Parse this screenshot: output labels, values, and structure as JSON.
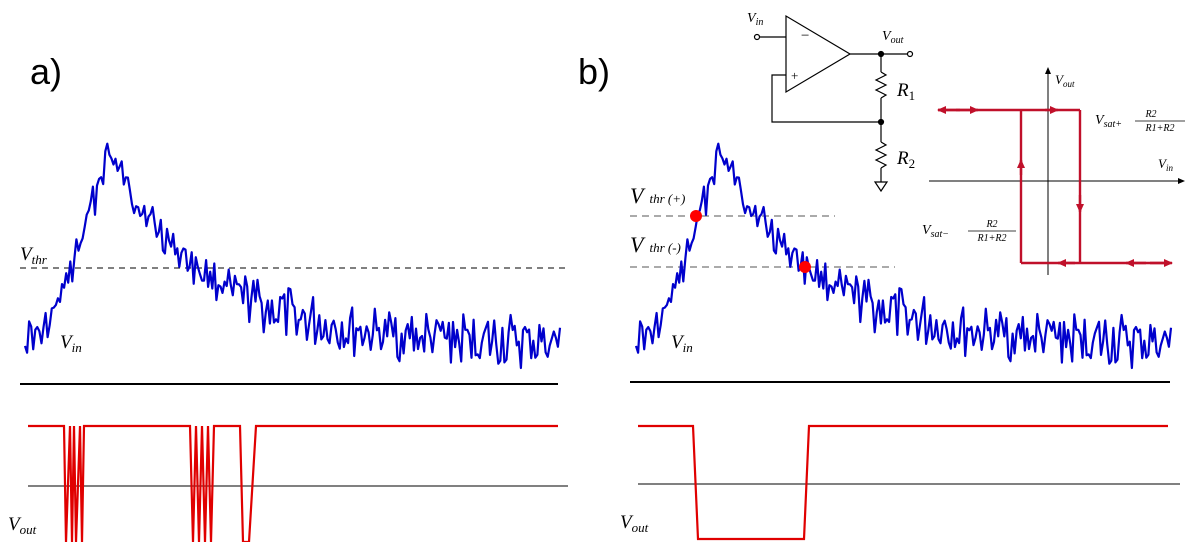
{
  "panel_a": {
    "label": "a)",
    "vthr_label": "V",
    "vthr_sub": "thr",
    "vin_label": "V",
    "vin_sub": "in",
    "vout_label": "V",
    "vout_sub": "out"
  },
  "panel_b": {
    "label": "b)",
    "vthr_plus_label": "V",
    "vthr_plus_sub": "thr (+)",
    "vthr_minus_label": "V",
    "vthr_minus_sub": "thr (-)",
    "vin_label": "V",
    "vin_sub": "in",
    "vout_label": "V",
    "vout_sub": "out"
  },
  "circuit": {
    "vin_label": "V",
    "vin_sub": "in",
    "vout_label": "V",
    "vout_sub": "out",
    "minus_sign": "−",
    "plus_sign": "+",
    "r1_label": "R",
    "r1_sub": "1",
    "r2_label": "R",
    "r2_sub": "2"
  },
  "hysteresis": {
    "vout_axis_label": "V",
    "vout_axis_sub": "out",
    "vin_axis_label": "V",
    "vin_axis_sub": "in",
    "upper_prefix": "V",
    "upper_sub": "sat+",
    "upper_frac_num": "R2",
    "upper_frac_den": "R1+R2",
    "lower_prefix": "V",
    "lower_sub": "sat−",
    "lower_frac_num": "R2",
    "lower_frac_den": "R1+R2"
  },
  "colors": {
    "signal": "#0000cc",
    "output": "#e00000",
    "hysteresis": "#c0102a",
    "marker": "#ff0000"
  }
}
